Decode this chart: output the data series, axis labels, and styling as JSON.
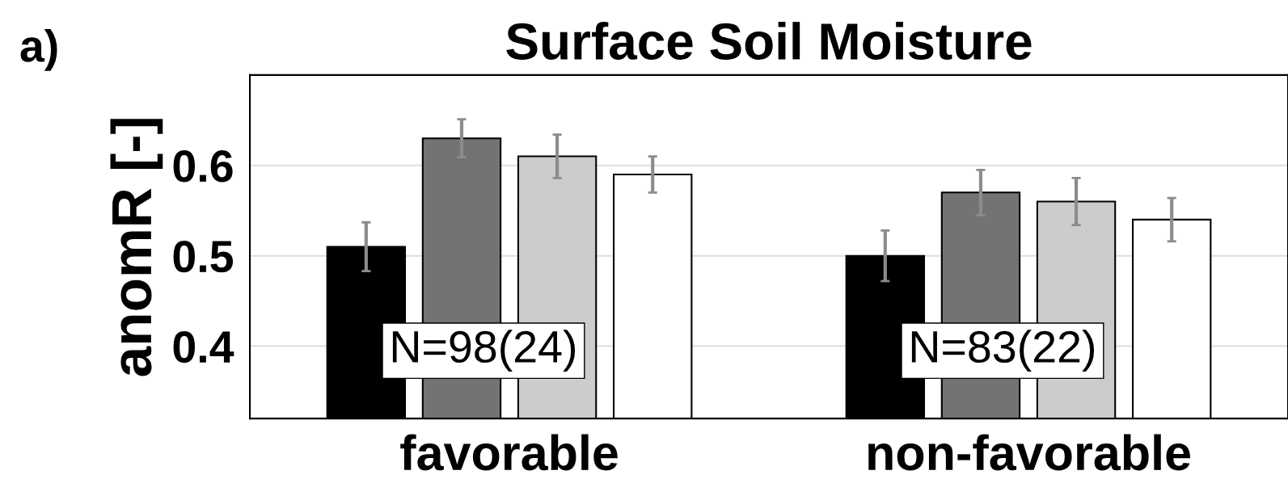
{
  "chart_data": {
    "type": "bar",
    "title": "Surface Soil Moisture",
    "ylabel": "anomR [-]",
    "categories": [
      "favorable",
      "non-favorable"
    ],
    "series": [
      {
        "color": "#000000",
        "values": [
          0.51,
          0.5
        ],
        "errors": [
          0.027,
          0.028
        ]
      },
      {
        "color": "#737373",
        "values": [
          0.63,
          0.57
        ],
        "errors": [
          0.021,
          0.025
        ]
      },
      {
        "color": "#cccccc",
        "values": [
          0.61,
          0.56
        ],
        "errors": [
          0.024,
          0.026
        ]
      },
      {
        "color": "#ffffff",
        "values": [
          0.59,
          0.54
        ],
        "errors": [
          0.02,
          0.024
        ]
      }
    ],
    "ylim": [
      0.32,
      0.7
    ],
    "yticks": [
      0.4,
      0.5,
      0.6
    ],
    "grid": "y",
    "legend": false,
    "annotations": [
      "a)",
      "N=98(24)",
      "N=83(22)"
    ]
  }
}
